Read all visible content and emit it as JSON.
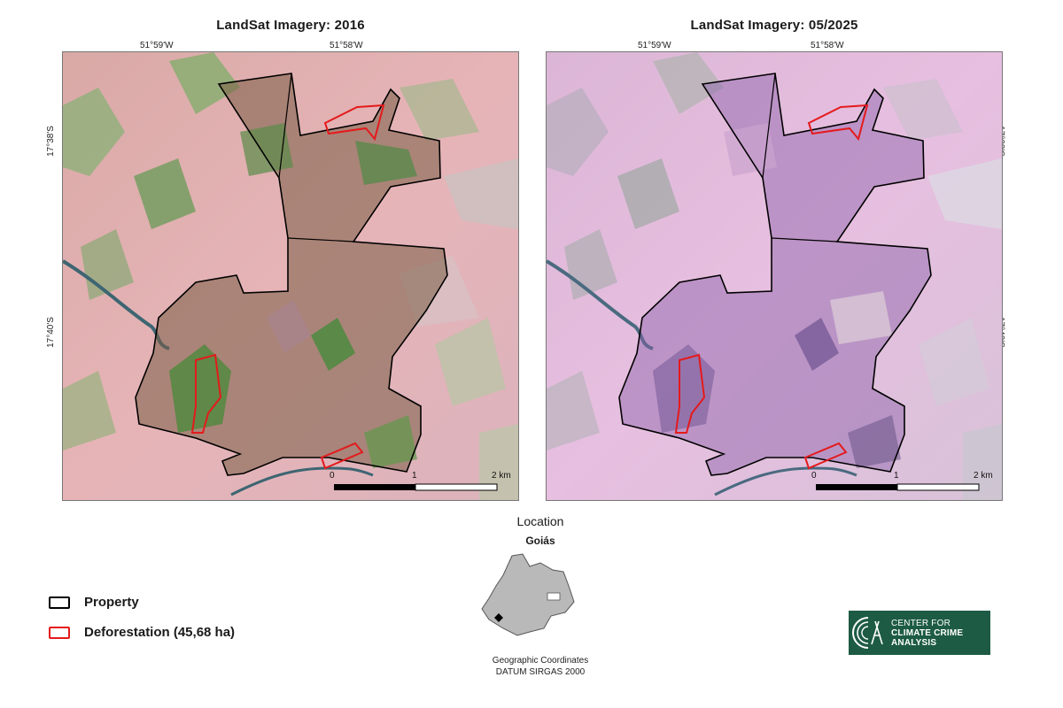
{
  "left_panel": {
    "title": "LandSat Imagery: 2016",
    "lon_labels": [
      "51°59'W",
      "51°58'W"
    ],
    "lat_labels": [
      "17°38'S",
      "17°40'S"
    ],
    "scale_labels": [
      "0",
      "1",
      "2 km"
    ]
  },
  "right_panel": {
    "title": "LandSat Imagery: 05/2025",
    "lon_labels": [
      "51°59'W",
      "51°58'W"
    ],
    "lat_labels": [
      "17°38'S",
      "17°40'S"
    ],
    "scale_labels": [
      "0",
      "1",
      "2 km"
    ]
  },
  "legend": {
    "property_label": "Property",
    "deforestation_label": "Deforestation (45,68 ha)"
  },
  "location": {
    "title": "Location",
    "state": "Goiás",
    "coords_line1": "Geographic Coordinates",
    "coords_line2": "DATUM SIRGAS 2000"
  },
  "logo": {
    "line1": "CENTER FOR",
    "line2": "CLIMATE CRIME",
    "line3": "ANALYSIS"
  },
  "colors": {
    "property_outline": "#000000",
    "deforestation_outline": "#e41a1c",
    "logo_bg": "#1d5b45"
  }
}
